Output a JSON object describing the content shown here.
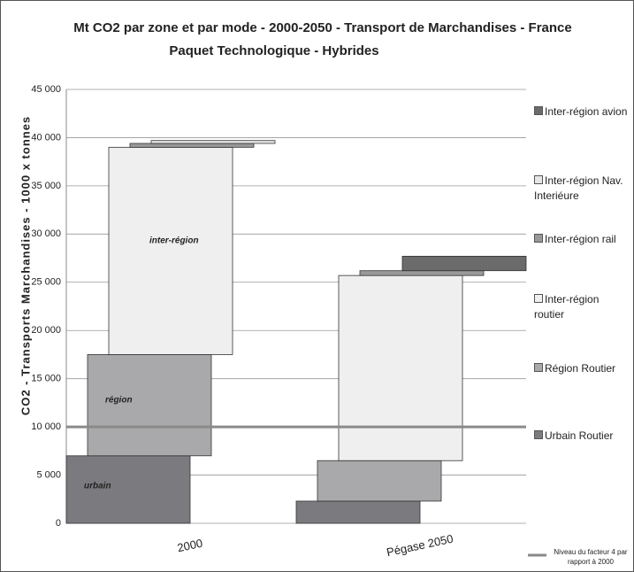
{
  "chart_data": {
    "type": "stacked_bar",
    "title": "Mt CO2 par zone et par mode - 2000-2050 - Transport de Marchandises - France",
    "subtitle": "Paquet Technologique - Hybrides",
    "y_label": "CO2 - Transports Marchandises - 1000 x tonnes",
    "categories": [
      "2000",
      "Pégase 2050"
    ],
    "series": [
      {
        "name": "Urbain Routier",
        "color": "#7b7b7f",
        "values": [
          7000,
          2300
        ]
      },
      {
        "name": "Région Routier",
        "color": "#a9a9ab",
        "values": [
          10500,
          4200
        ]
      },
      {
        "name": "Inter-région routier",
        "color": "#efefef",
        "values": [
          21500,
          19200
        ]
      },
      {
        "name": "Inter-région rail",
        "color": "#999999",
        "values": [
          400,
          500
        ]
      },
      {
        "name": "Inter-région Nav. Interiéure",
        "color": "#e6e6e6",
        "values": [
          300,
          0
        ]
      },
      {
        "name": "Inter-région avion",
        "color": "#6b6b6b",
        "values": [
          0,
          1500
        ]
      }
    ],
    "annotations": [
      "urbain",
      "région",
      "inter-région"
    ],
    "reference_line": {
      "value": 10000,
      "label": "Niveau du facteur 4 par rapport à 2000",
      "color": "#8a8a8a"
    },
    "ylim": [
      0,
      45000
    ],
    "yticks": [
      {
        "value": 0,
        "label": "0"
      },
      {
        "value": 5000,
        "label": "5 000"
      },
      {
        "value": 10000,
        "label": "10 000"
      },
      {
        "value": 15000,
        "label": "15 000"
      },
      {
        "value": 20000,
        "label": "20 000"
      },
      {
        "value": 25000,
        "label": "25 000"
      },
      {
        "value": 30000,
        "label": "30 000"
      },
      {
        "value": 35000,
        "label": "35 000"
      },
      {
        "value": 40000,
        "label": "40 000"
      },
      {
        "value": 45000,
        "label": "45 000"
      }
    ],
    "grid": true
  }
}
